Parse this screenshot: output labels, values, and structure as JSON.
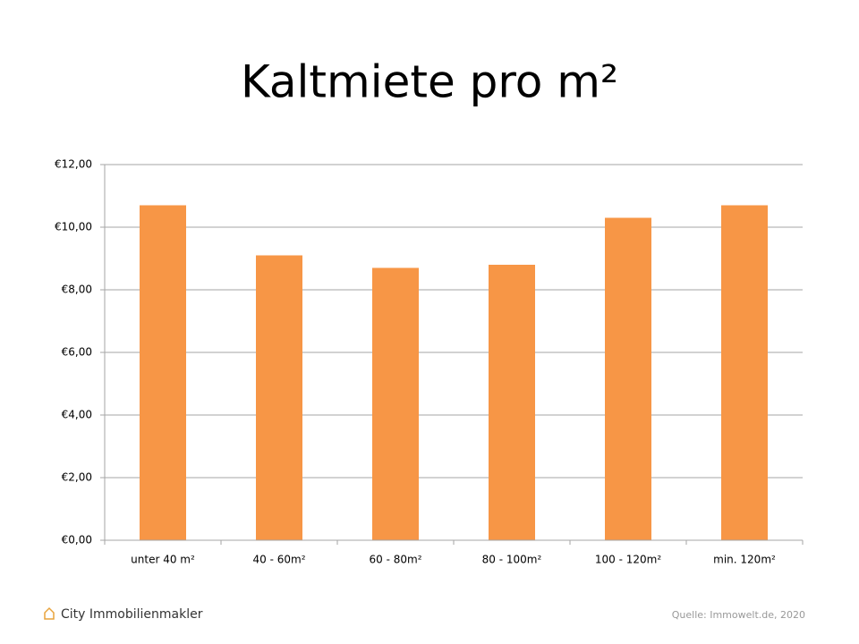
{
  "chart_data": {
    "type": "bar",
    "title": "Kaltmiete pro m²",
    "categories": [
      "unter 40 m²",
      "40 - 60m²",
      "60 - 80m²",
      "80 - 100m²",
      "100 - 120m²",
      "min. 120m²"
    ],
    "values": [
      10.7,
      9.1,
      8.7,
      8.8,
      10.3,
      10.7
    ],
    "color": "#f79646",
    "ylim": [
      0,
      12
    ],
    "yticks": [
      {
        "value": 0,
        "label": "€0,00"
      },
      {
        "value": 2,
        "label": "€2,00"
      },
      {
        "value": 4,
        "label": "€4,00"
      },
      {
        "value": 6,
        "label": "€6,00"
      },
      {
        "value": 8,
        "label": "€8,00"
      },
      {
        "value": 10,
        "label": "€10,00"
      },
      {
        "value": 12,
        "label": "€12,00"
      }
    ],
    "grid": true
  },
  "footer": {
    "brand": "City Immobilienmakler",
    "source": "Quelle: Immowelt.de, 2020"
  }
}
